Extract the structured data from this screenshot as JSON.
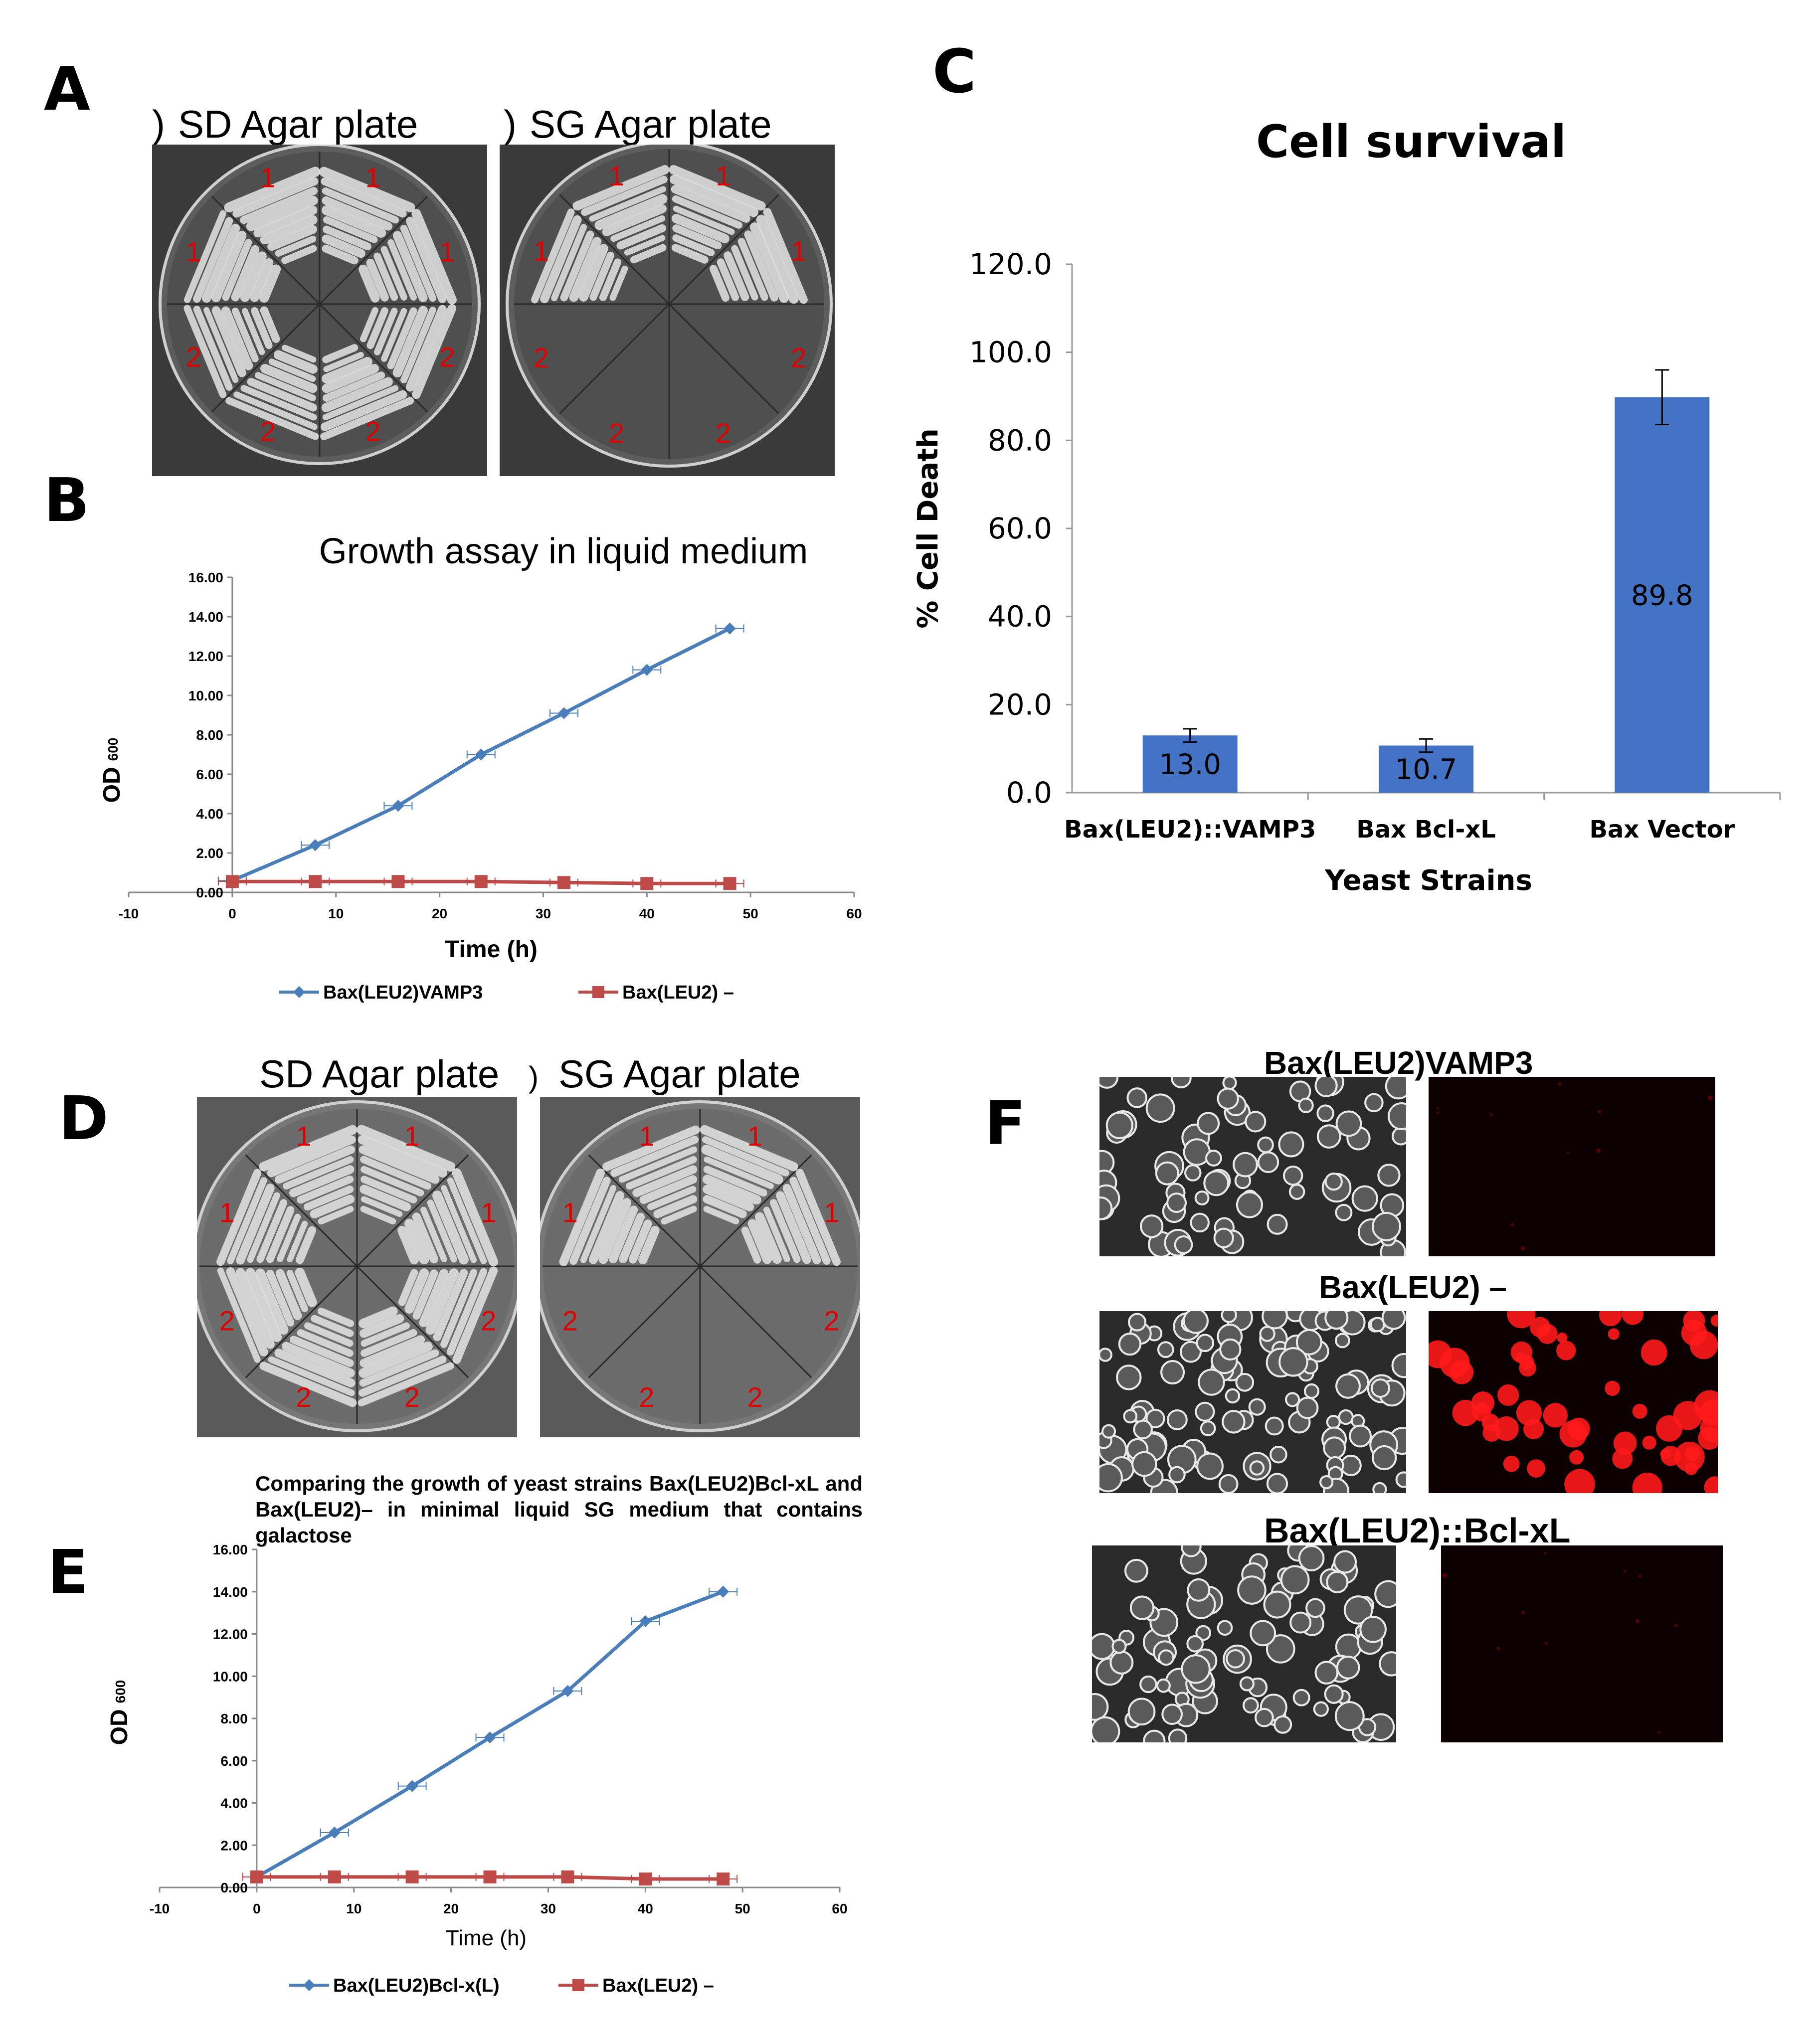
{
  "panels": {
    "A": {
      "letter": "A",
      "plates": [
        {
          "title": "SD Agar plate",
          "prefix": ")",
          "sectors": [
            "1",
            "1",
            "1",
            "1",
            "2",
            "2",
            "2",
            "2"
          ]
        },
        {
          "title": "SG Agar plate",
          "prefix": ")",
          "sectors": [
            "1",
            "1",
            "1",
            "1",
            "2",
            "2",
            "2",
            "2"
          ]
        }
      ]
    },
    "B": {
      "letter": "B",
      "chart": {
        "title": "Growth assay in liquid medium",
        "xlabel": "Time (h)",
        "ylabel_main": "OD",
        "ylabel_sub": "600",
        "xticks": [
          "-10",
          "0",
          "10",
          "20",
          "30",
          "40",
          "50",
          "60"
        ],
        "yticks": [
          "0.00",
          "2.00",
          "4.00",
          "6.00",
          "8.00",
          "10.00",
          "12.00",
          "14.00",
          "16.00"
        ],
        "legend": [
          "Bax(LEU2)VAMP3",
          "Bax(LEU2) –"
        ]
      }
    },
    "C": {
      "letter": "C",
      "chart": {
        "title": "Cell survival",
        "xlabel": "Yeast Strains",
        "ylabel": "% Cell Death",
        "yticks": [
          "0.0",
          "20.0",
          "40.0",
          "60.0",
          "80.0",
          "100.0",
          "120.0"
        ],
        "categories": [
          "Bax(LEU2)::VAMP3",
          "Bax Bcl-xL",
          "Bax Vector"
        ],
        "value_labels": [
          "13.0",
          "10.7",
          "89.8"
        ]
      }
    },
    "D": {
      "letter": "D",
      "plates": [
        {
          "title": "SD Agar plate",
          "prefix": "",
          "sectors": [
            "1",
            "1",
            "1",
            "1",
            "2",
            "2",
            "2",
            "2"
          ]
        },
        {
          "title": "SG Agar plate",
          "prefix": ")",
          "sectors": [
            "1",
            "1",
            "1",
            "1",
            "2",
            "2",
            "2",
            "2"
          ]
        }
      ]
    },
    "E": {
      "letter": "E",
      "caption": "Comparing the growth of yeast strains Bax(LEU2)Bcl-xL and Bax(LEU2)– in minimal liquid SG medium that contains galactose",
      "chart": {
        "xlabel": "Time (h)",
        "ylabel_main": "OD",
        "ylabel_sub": "600",
        "xticks": [
          "-10",
          "0",
          "10",
          "20",
          "30",
          "40",
          "50",
          "60"
        ],
        "yticks": [
          "0.00",
          "2.00",
          "4.00",
          "6.00",
          "8.00",
          "10.00",
          "12.00",
          "14.00",
          "16.00"
        ],
        "legend": [
          "Bax(LEU2)Bcl-x(L)",
          "Bax(LEU2) –"
        ]
      }
    },
    "F": {
      "letter": "F",
      "rows": [
        {
          "title": "Bax(LEU2)VAMP3"
        },
        {
          "title": "Bax(LEU2) –"
        },
        {
          "title": "Bax(LEU2)::Bcl-xL"
        }
      ]
    }
  },
  "colors": {
    "series_blue": "#4a7ebb",
    "series_red": "#be4b48",
    "bar_blue": "#4472c4",
    "plate_number_red": "#e00000"
  },
  "chart_data": [
    {
      "panel": "B",
      "type": "line",
      "title": "Growth assay in liquid medium",
      "xlabel": "Time (h)",
      "ylabel": "OD 600",
      "xlim": [
        -10,
        60
      ],
      "ylim": [
        0,
        16
      ],
      "x": [
        0,
        8,
        16,
        24,
        32,
        40,
        48
      ],
      "series": [
        {
          "name": "Bax(LEU2)VAMP3",
          "values": [
            0.6,
            2.4,
            4.4,
            7.0,
            9.1,
            11.3,
            13.4
          ]
        },
        {
          "name": "Bax(LEU2) –",
          "values": [
            0.55,
            0.55,
            0.55,
            0.55,
            0.5,
            0.45,
            0.45
          ]
        }
      ]
    },
    {
      "panel": "C",
      "type": "bar",
      "title": "Cell survival",
      "xlabel": "Yeast Strains",
      "ylabel": "% Cell Death",
      "ylim": [
        0,
        120
      ],
      "categories": [
        "Bax(LEU2)::VAMP3",
        "Bax Bcl-xL",
        "Bax Vector"
      ],
      "values": [
        13.0,
        10.7,
        89.8
      ],
      "errors": [
        1.5,
        1.5,
        6.2
      ]
    },
    {
      "panel": "E",
      "type": "line",
      "title": "Comparing the growth of yeast strains Bax(LEU2)Bcl-xL and Bax(LEU2)– in minimal liquid SG medium that contains galactose",
      "xlabel": "Time (h)",
      "ylabel": "OD 600",
      "xlim": [
        -10,
        60
      ],
      "ylim": [
        0,
        16
      ],
      "x": [
        0,
        8,
        16,
        24,
        32,
        40,
        48
      ],
      "series": [
        {
          "name": "Bax(LEU2)Bcl-x(L)",
          "values": [
            0.5,
            2.6,
            4.8,
            7.1,
            9.3,
            12.6,
            14.0
          ]
        },
        {
          "name": "Bax(LEU2) –",
          "values": [
            0.5,
            0.5,
            0.5,
            0.5,
            0.5,
            0.4,
            0.4
          ]
        }
      ]
    }
  ]
}
